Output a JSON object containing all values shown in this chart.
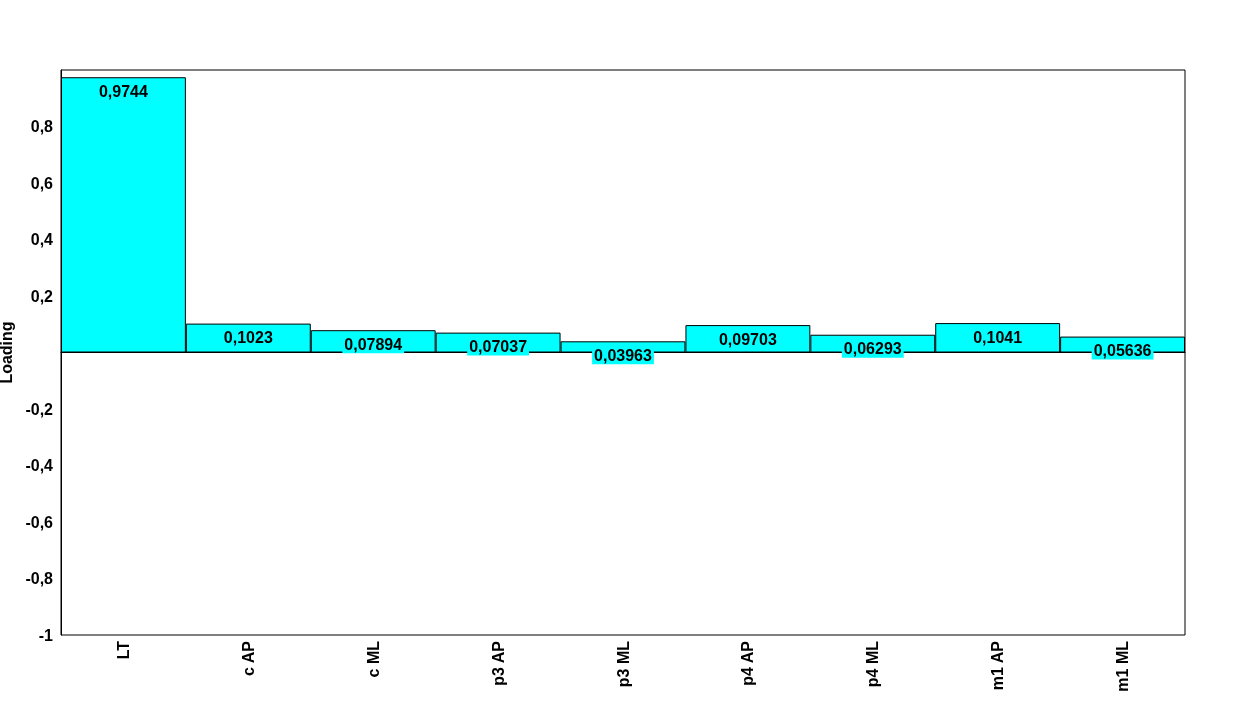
{
  "chart_data": {
    "type": "bar",
    "ylabel": "Loading",
    "categories": [
      "LT",
      "c AP",
      "c ML",
      "p3 AP",
      "p3 ML",
      "p4 AP",
      "p4 ML",
      "m1 AP",
      "m1 ML"
    ],
    "values": [
      0.9744,
      0.1023,
      0.07894,
      0.07037,
      0.03963,
      0.09703,
      0.06293,
      0.1041,
      0.05636
    ],
    "value_labels": [
      "0,9744",
      "0,1023",
      "0,07894",
      "0,07037",
      "0,03963",
      "0,09703",
      "0,06293",
      "0,1041",
      "0,05636"
    ],
    "color": "#00ffff",
    "ylim": [
      -1,
      1
    ],
    "yticks": [
      {
        "value": -1,
        "label": "-1"
      },
      {
        "value": -0.8,
        "label": "-0,8"
      },
      {
        "value": -0.6,
        "label": "-0,6"
      },
      {
        "value": -0.4,
        "label": "-0,4"
      },
      {
        "value": -0.2,
        "label": "-0,2"
      },
      {
        "value": 0,
        "label": null
      },
      {
        "value": 0.2,
        "label": "0,2"
      },
      {
        "value": 0.4,
        "label": "0,4"
      },
      {
        "value": 0.6,
        "label": "0,6"
      },
      {
        "value": 0.8,
        "label": "0,8"
      }
    ]
  }
}
